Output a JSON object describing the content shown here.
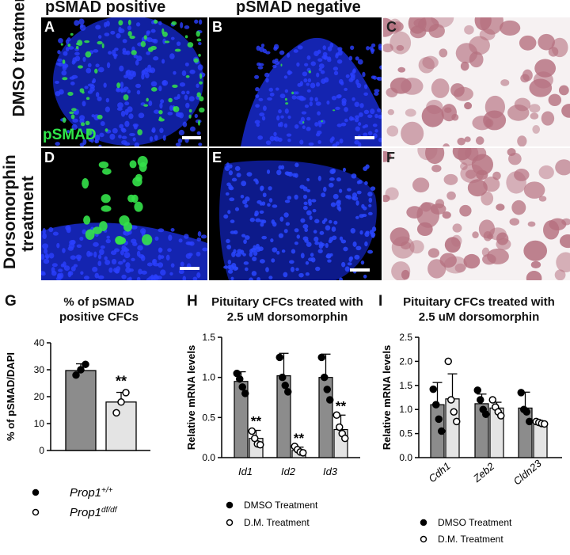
{
  "headers": {
    "col_positive": "pSMAD positive",
    "col_negative": "pSMAD negative"
  },
  "rows": {
    "dmso": "DMSO treatment",
    "dorsomorphin": "Dorsomorphin treatment"
  },
  "panels": {
    "A": "A",
    "B": "B",
    "C": "C",
    "D": "D",
    "E": "E",
    "F": "F",
    "G": "G",
    "H": "H",
    "I": "I",
    "stain_label": "pSMAD"
  },
  "colors": {
    "dapi_blue": "#2233d6",
    "psmad_green": "#34e24a",
    "bar_dark": "#8c8c8c",
    "bar_light": "#e4e4e4",
    "he_pink": "#b5707f"
  },
  "chart_data": [
    {
      "panel": "G",
      "type": "bar",
      "title": "% of pSMAD positive CFCs",
      "title_lines": [
        "% of pSMAD",
        "positive CFCs"
      ],
      "ylabel": "% of pSMAD/DAPI",
      "ylim": [
        0,
        40
      ],
      "yticks": [
        "0",
        "10",
        "20",
        "30",
        "40"
      ],
      "categories": [
        "Prop1+/+",
        "Prop1df/df"
      ],
      "values": [
        29.7,
        18.0
      ],
      "errors": [
        2.5,
        3.6
      ],
      "points": [
        [
          28,
          30,
          32
        ],
        [
          14,
          18,
          21.5
        ]
      ],
      "significance": [
        null,
        "**"
      ],
      "legend": [
        {
          "marker": "filled",
          "base": "Prop1",
          "sup": "+/+"
        },
        {
          "marker": "open",
          "base": "Prop1",
          "sup": "df/df"
        }
      ]
    },
    {
      "panel": "H",
      "type": "bar",
      "title_lines": [
        "Pituitary CFCs treated with",
        "2.5 uM dorsomorphin"
      ],
      "ylabel": "Relative mRNA levels",
      "ylim": [
        0,
        1.5
      ],
      "yticks": [
        "0.0",
        "0.5",
        "1.0",
        "1.5"
      ],
      "categories": [
        "Id1",
        "Id2",
        "Id3"
      ],
      "series": [
        {
          "name": "DMSO Treatment",
          "values": [
            0.95,
            1.02,
            1.0
          ],
          "errors": [
            0.12,
            0.28,
            0.29
          ],
          "points": [
            [
              1.05,
              0.98,
              0.88,
              0.8
            ],
            [
              1.25,
              1.0,
              0.9,
              0.82
            ],
            [
              1.25,
              1.0,
              0.85,
              0.72
            ]
          ]
        },
        {
          "name": "D.M. Treatment",
          "values": [
            0.24,
            0.09,
            0.35
          ],
          "errors": [
            0.1,
            0.04,
            0.18
          ],
          "points": [
            [
              0.33,
              0.24,
              0.17,
              0.16
            ],
            [
              0.14,
              0.1,
              0.07,
              0.06
            ],
            [
              0.53,
              0.38,
              0.3,
              0.24
            ]
          ]
        }
      ],
      "significance": [
        "**",
        "**",
        "**"
      ],
      "legend": [
        "DMSO Treatment",
        "D.M. Treatment"
      ]
    },
    {
      "panel": "I",
      "type": "bar",
      "title_lines": [
        "Pituitary CFCs treated with",
        "2.5 uM dorsomorphin"
      ],
      "ylabel": "Relative mRNA levels",
      "ylim": [
        0,
        2.5
      ],
      "yticks": [
        "0.0",
        "0.5",
        "1.0",
        "1.5",
        "2.0",
        "2.5"
      ],
      "categories": [
        "Cdh1",
        "Zeb2",
        "Cldn23"
      ],
      "series": [
        {
          "name": "DMSO Treatment",
          "values": [
            1.1,
            1.12,
            1.03
          ],
          "errors": [
            0.46,
            0.2,
            0.33
          ],
          "points": [
            [
              1.42,
              1.1,
              0.8,
              0.55
            ],
            [
              1.4,
              1.2,
              1.0,
              0.9
            ],
            [
              1.35,
              1.0,
              0.95,
              0.75
            ]
          ]
        },
        {
          "name": "D.M. Treatment",
          "values": [
            1.22,
            1.03,
            0.72
          ],
          "errors": [
            0.52,
            0.12,
            0.03
          ],
          "points": [
            [
              2.0,
              1.2,
              0.95,
              0.75
            ],
            [
              1.2,
              1.05,
              0.95,
              0.87
            ],
            [
              0.75,
              0.73,
              0.71,
              0.7
            ]
          ]
        }
      ],
      "significance": [
        null,
        null,
        null
      ],
      "legend": [
        "DMSO Treatment",
        "D.M. Treatment"
      ]
    }
  ]
}
